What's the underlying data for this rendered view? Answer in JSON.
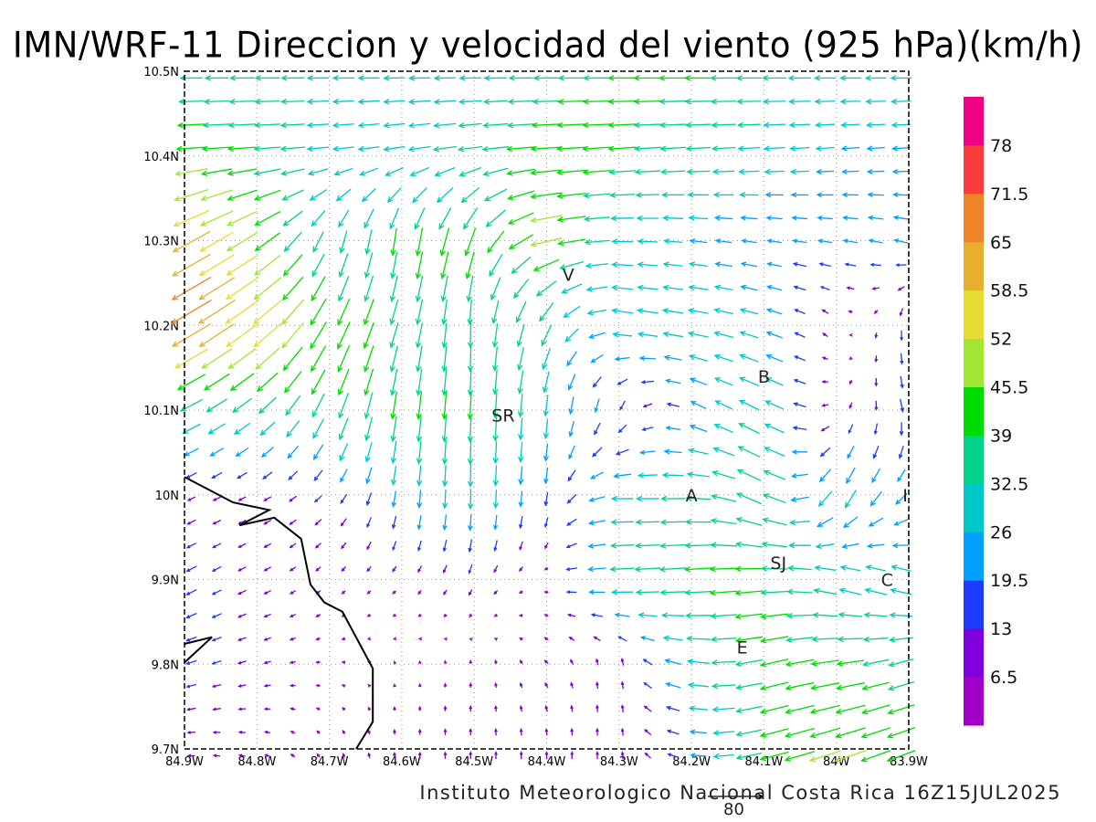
{
  "title": "IMN/WRF-11 Direccion y velocidad del viento (925 hPa)(km/h)",
  "footer": "Instituto Meteorologico Nacional Costa Rica  16Z15JUL2025",
  "reference_vector": {
    "label": "80",
    "value": 80
  },
  "chart_data": {
    "type": "vector",
    "units": "km/h",
    "lon_range": [
      -84.9,
      -83.9
    ],
    "lat_range": [
      9.7,
      10.5
    ],
    "x_tick_labels": [
      "84.9W",
      "84.8W",
      "84.7W",
      "84.6W",
      "84.5W",
      "84.4W",
      "84.3W",
      "84.2W",
      "84.1W",
      "84W",
      "83.9W"
    ],
    "x_tick_values": [
      -84.9,
      -84.8,
      -84.7,
      -84.6,
      -84.5,
      -84.4,
      -84.3,
      -84.2,
      -84.1,
      -84.0,
      -83.9
    ],
    "y_tick_labels": [
      "10.5N",
      "10.4N",
      "10.3N",
      "10.2N",
      "10.1N",
      "10N",
      "9.9N",
      "9.8N",
      "9.7N"
    ],
    "y_tick_values": [
      10.5,
      10.4,
      10.3,
      10.2,
      10.1,
      10.0,
      9.9,
      9.8,
      9.7
    ],
    "grid": true,
    "field_lon": [
      -84.9,
      -84.8,
      -84.7,
      -84.6,
      -84.5,
      -84.4,
      -84.3,
      -84.2,
      -84.1,
      -84.0,
      -83.9
    ],
    "field_lat": [
      10.5,
      10.4,
      10.3,
      10.2,
      10.1,
      10.0,
      9.9,
      9.8,
      9.7
    ],
    "u": [
      [
        -30,
        -35,
        -30,
        -30,
        -30,
        -35,
        -40,
        -40,
        -35,
        -30,
        -30
      ],
      [
        -45,
        -40,
        -30,
        -30,
        -35,
        -45,
        -40,
        -35,
        -30,
        -25,
        -25
      ],
      [
        -55,
        -40,
        -10,
        -5,
        -15,
        -45,
        -30,
        -25,
        -20,
        -20,
        -20
      ],
      [
        -60,
        -45,
        -20,
        -10,
        0,
        -15,
        -30,
        -30,
        -25,
        -3,
        0
      ],
      [
        -30,
        -25,
        -15,
        -5,
        -2,
        -3,
        -5,
        -20,
        -30,
        -5,
        5
      ],
      [
        -10,
        -10,
        -10,
        -3,
        0,
        -3,
        -30,
        -35,
        -35,
        -15,
        -15
      ],
      [
        -15,
        -10,
        -5,
        -5,
        -5,
        -5,
        -35,
        -40,
        -40,
        -30,
        -30
      ],
      [
        -15,
        -10,
        -5,
        0,
        0,
        -5,
        0,
        -30,
        -40,
        -40,
        -35
      ],
      [
        -10,
        -8,
        -3,
        0,
        0,
        0,
        0,
        -20,
        -40,
        -45,
        -40
      ]
    ],
    "v": [
      [
        0,
        0,
        0,
        0,
        0,
        0,
        0,
        0,
        0,
        0,
        0
      ],
      [
        -3,
        -3,
        -3,
        -5,
        -5,
        -3,
        -3,
        -2,
        -2,
        -2,
        -2
      ],
      [
        -30,
        -25,
        -30,
        -40,
        -40,
        -10,
        0,
        3,
        3,
        3,
        5
      ],
      [
        -35,
        -35,
        -40,
        -35,
        -35,
        -30,
        5,
        5,
        8,
        5,
        -15
      ],
      [
        -15,
        -20,
        -35,
        -40,
        -40,
        -30,
        -15,
        10,
        15,
        -5,
        -20
      ],
      [
        -5,
        -5,
        -10,
        -25,
        -30,
        -20,
        0,
        0,
        20,
        -30,
        -15
      ],
      [
        -8,
        -5,
        -5,
        -5,
        -10,
        0,
        -2,
        -3,
        -3,
        10,
        10
      ],
      [
        -5,
        -3,
        0,
        2,
        5,
        5,
        10,
        5,
        -10,
        -5,
        -10
      ],
      [
        0,
        2,
        5,
        8,
        10,
        10,
        10,
        3,
        -10,
        -15,
        -15
      ]
    ],
    "colorbar": {
      "labels": [
        "6.5",
        "13",
        "19.5",
        "26",
        "32.5",
        "39",
        "45.5",
        "52",
        "58.5",
        "65",
        "71.5",
        "78"
      ],
      "colors": [
        "#a000c8",
        "#7f00dc",
        "#1e3cff",
        "#00a0ff",
        "#00c8c8",
        "#00d28c",
        "#00dc00",
        "#a0e632",
        "#e6dc32",
        "#e6af2d",
        "#f08228",
        "#fa3c3c",
        "#f00082"
      ]
    },
    "places": [
      {
        "label": "V",
        "lon": -84.37,
        "lat": 10.26
      },
      {
        "label": "SR",
        "lon": -84.46,
        "lat": 10.094
      },
      {
        "label": "B",
        "lon": -84.1,
        "lat": 10.14
      },
      {
        "label": "A",
        "lon": -84.2,
        "lat": 10.0
      },
      {
        "label": "I",
        "lon": -83.905,
        "lat": 10.0
      },
      {
        "label": "SJ",
        "lon": -84.08,
        "lat": 9.92
      },
      {
        "label": "C",
        "lon": -83.93,
        "lat": 9.9
      },
      {
        "label": "E",
        "lon": -84.13,
        "lat": 9.82
      }
    ],
    "coastlines": [
      [
        [
          -84.9,
          10.021
        ],
        [
          -84.833,
          9.991
        ],
        [
          -84.783,
          9.982
        ],
        [
          -84.824,
          9.964
        ],
        [
          -84.776,
          9.973
        ],
        [
          -84.739,
          9.948
        ],
        [
          -84.726,
          9.894
        ],
        [
          -84.707,
          9.873
        ],
        [
          -84.682,
          9.862
        ],
        [
          -84.64,
          9.795
        ],
        [
          -84.64,
          9.732
        ],
        [
          -84.663,
          9.7
        ]
      ],
      [
        [
          -84.9,
          9.824
        ],
        [
          -84.862,
          9.832
        ],
        [
          -84.9,
          9.802
        ]
      ]
    ]
  }
}
